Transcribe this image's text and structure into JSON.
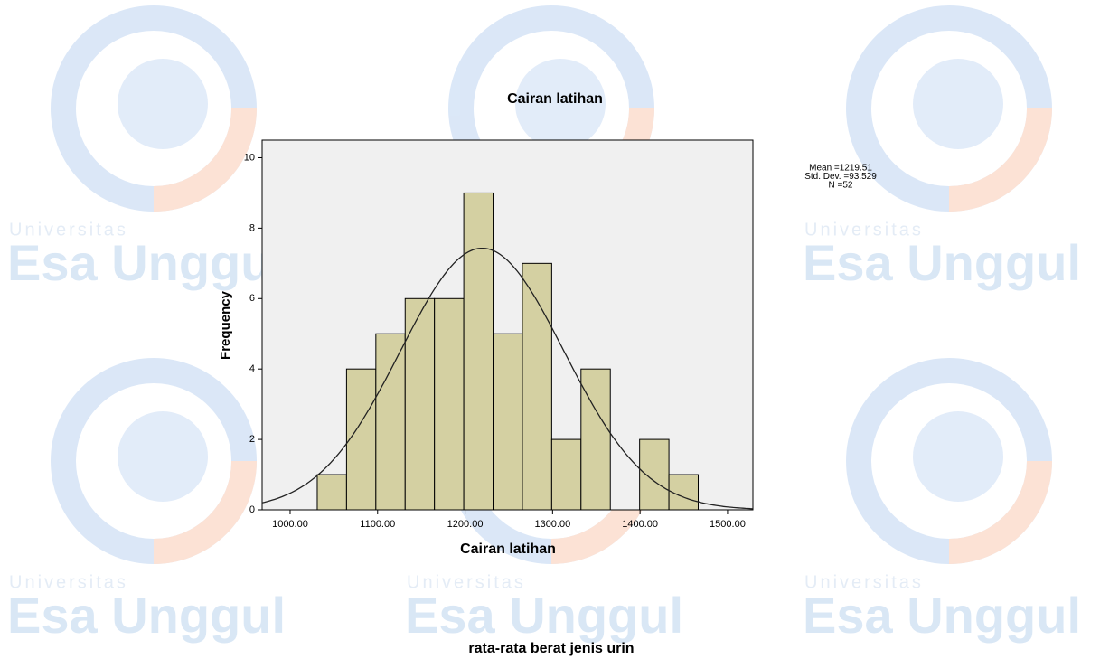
{
  "watermark": {
    "top": "Universitas",
    "main": "Esa Unggul"
  },
  "caption": "rata-rata berat jenis urin",
  "chart_data": {
    "type": "histogram",
    "title": "Cairan latihan",
    "x_label": "Cairan latihan",
    "y_label": "Frequency",
    "bins": [
      1031,
      1064.5,
      1098,
      1131.5,
      1165,
      1198.5,
      1232,
      1265.5,
      1299,
      1332.5,
      1366,
      1399.5,
      1433,
      1466.5
    ],
    "values": [
      1,
      4,
      5,
      6,
      6,
      9,
      5,
      7,
      2,
      4,
      0,
      2,
      1
    ],
    "color": "#d4d0a2",
    "xlim": [
      968,
      1529
    ],
    "xticks": [
      {
        "value": 1000,
        "label": "1000.00"
      },
      {
        "value": 1100,
        "label": "1100.00"
      },
      {
        "value": 1200,
        "label": "1200.00"
      },
      {
        "value": 1300,
        "label": "1300.00"
      },
      {
        "value": 1400,
        "label": "1400.00"
      },
      {
        "value": 1500,
        "label": "1500.00"
      }
    ],
    "ylim": [
      0,
      10.5
    ],
    "yticks": [
      0,
      2,
      4,
      6,
      8,
      10
    ],
    "stats": [
      {
        "label": "Mean =1219.51",
        "value": 1219.51
      },
      {
        "label": "Std. Dev. =93.529",
        "value": 93.529
      },
      {
        "label": "N =52",
        "value": 52
      }
    ],
    "normal_curve": true
  }
}
